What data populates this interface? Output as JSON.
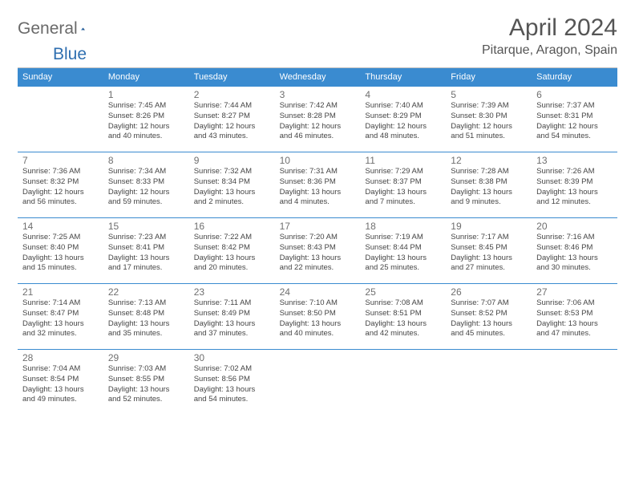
{
  "logo": {
    "text1": "General",
    "text2": "Blue"
  },
  "title": "April 2024",
  "location": "Pitarque, Aragon, Spain",
  "colors": {
    "header_blue": "#3a8bd0",
    "logo_blue": "#2f6fb0",
    "text_gray": "#555555",
    "cell_text": "#454545",
    "background": "#ffffff"
  },
  "day_headers": [
    "Sunday",
    "Monday",
    "Tuesday",
    "Wednesday",
    "Thursday",
    "Friday",
    "Saturday"
  ],
  "weeks": [
    [
      null,
      {
        "n": "1",
        "sr": "7:45 AM",
        "ss": "8:26 PM",
        "dl": "12 hours and 40 minutes."
      },
      {
        "n": "2",
        "sr": "7:44 AM",
        "ss": "8:27 PM",
        "dl": "12 hours and 43 minutes."
      },
      {
        "n": "3",
        "sr": "7:42 AM",
        "ss": "8:28 PM",
        "dl": "12 hours and 46 minutes."
      },
      {
        "n": "4",
        "sr": "7:40 AM",
        "ss": "8:29 PM",
        "dl": "12 hours and 48 minutes."
      },
      {
        "n": "5",
        "sr": "7:39 AM",
        "ss": "8:30 PM",
        "dl": "12 hours and 51 minutes."
      },
      {
        "n": "6",
        "sr": "7:37 AM",
        "ss": "8:31 PM",
        "dl": "12 hours and 54 minutes."
      }
    ],
    [
      {
        "n": "7",
        "sr": "7:36 AM",
        "ss": "8:32 PM",
        "dl": "12 hours and 56 minutes."
      },
      {
        "n": "8",
        "sr": "7:34 AM",
        "ss": "8:33 PM",
        "dl": "12 hours and 59 minutes."
      },
      {
        "n": "9",
        "sr": "7:32 AM",
        "ss": "8:34 PM",
        "dl": "13 hours and 2 minutes."
      },
      {
        "n": "10",
        "sr": "7:31 AM",
        "ss": "8:36 PM",
        "dl": "13 hours and 4 minutes."
      },
      {
        "n": "11",
        "sr": "7:29 AM",
        "ss": "8:37 PM",
        "dl": "13 hours and 7 minutes."
      },
      {
        "n": "12",
        "sr": "7:28 AM",
        "ss": "8:38 PM",
        "dl": "13 hours and 9 minutes."
      },
      {
        "n": "13",
        "sr": "7:26 AM",
        "ss": "8:39 PM",
        "dl": "13 hours and 12 minutes."
      }
    ],
    [
      {
        "n": "14",
        "sr": "7:25 AM",
        "ss": "8:40 PM",
        "dl": "13 hours and 15 minutes."
      },
      {
        "n": "15",
        "sr": "7:23 AM",
        "ss": "8:41 PM",
        "dl": "13 hours and 17 minutes."
      },
      {
        "n": "16",
        "sr": "7:22 AM",
        "ss": "8:42 PM",
        "dl": "13 hours and 20 minutes."
      },
      {
        "n": "17",
        "sr": "7:20 AM",
        "ss": "8:43 PM",
        "dl": "13 hours and 22 minutes."
      },
      {
        "n": "18",
        "sr": "7:19 AM",
        "ss": "8:44 PM",
        "dl": "13 hours and 25 minutes."
      },
      {
        "n": "19",
        "sr": "7:17 AM",
        "ss": "8:45 PM",
        "dl": "13 hours and 27 minutes."
      },
      {
        "n": "20",
        "sr": "7:16 AM",
        "ss": "8:46 PM",
        "dl": "13 hours and 30 minutes."
      }
    ],
    [
      {
        "n": "21",
        "sr": "7:14 AM",
        "ss": "8:47 PM",
        "dl": "13 hours and 32 minutes."
      },
      {
        "n": "22",
        "sr": "7:13 AM",
        "ss": "8:48 PM",
        "dl": "13 hours and 35 minutes."
      },
      {
        "n": "23",
        "sr": "7:11 AM",
        "ss": "8:49 PM",
        "dl": "13 hours and 37 minutes."
      },
      {
        "n": "24",
        "sr": "7:10 AM",
        "ss": "8:50 PM",
        "dl": "13 hours and 40 minutes."
      },
      {
        "n": "25",
        "sr": "7:08 AM",
        "ss": "8:51 PM",
        "dl": "13 hours and 42 minutes."
      },
      {
        "n": "26",
        "sr": "7:07 AM",
        "ss": "8:52 PM",
        "dl": "13 hours and 45 minutes."
      },
      {
        "n": "27",
        "sr": "7:06 AM",
        "ss": "8:53 PM",
        "dl": "13 hours and 47 minutes."
      }
    ],
    [
      {
        "n": "28",
        "sr": "7:04 AM",
        "ss": "8:54 PM",
        "dl": "13 hours and 49 minutes."
      },
      {
        "n": "29",
        "sr": "7:03 AM",
        "ss": "8:55 PM",
        "dl": "13 hours and 52 minutes."
      },
      {
        "n": "30",
        "sr": "7:02 AM",
        "ss": "8:56 PM",
        "dl": "13 hours and 54 minutes."
      },
      null,
      null,
      null,
      null
    ]
  ],
  "labels": {
    "sunrise": "Sunrise:",
    "sunset": "Sunset:",
    "daylight": "Daylight:"
  }
}
